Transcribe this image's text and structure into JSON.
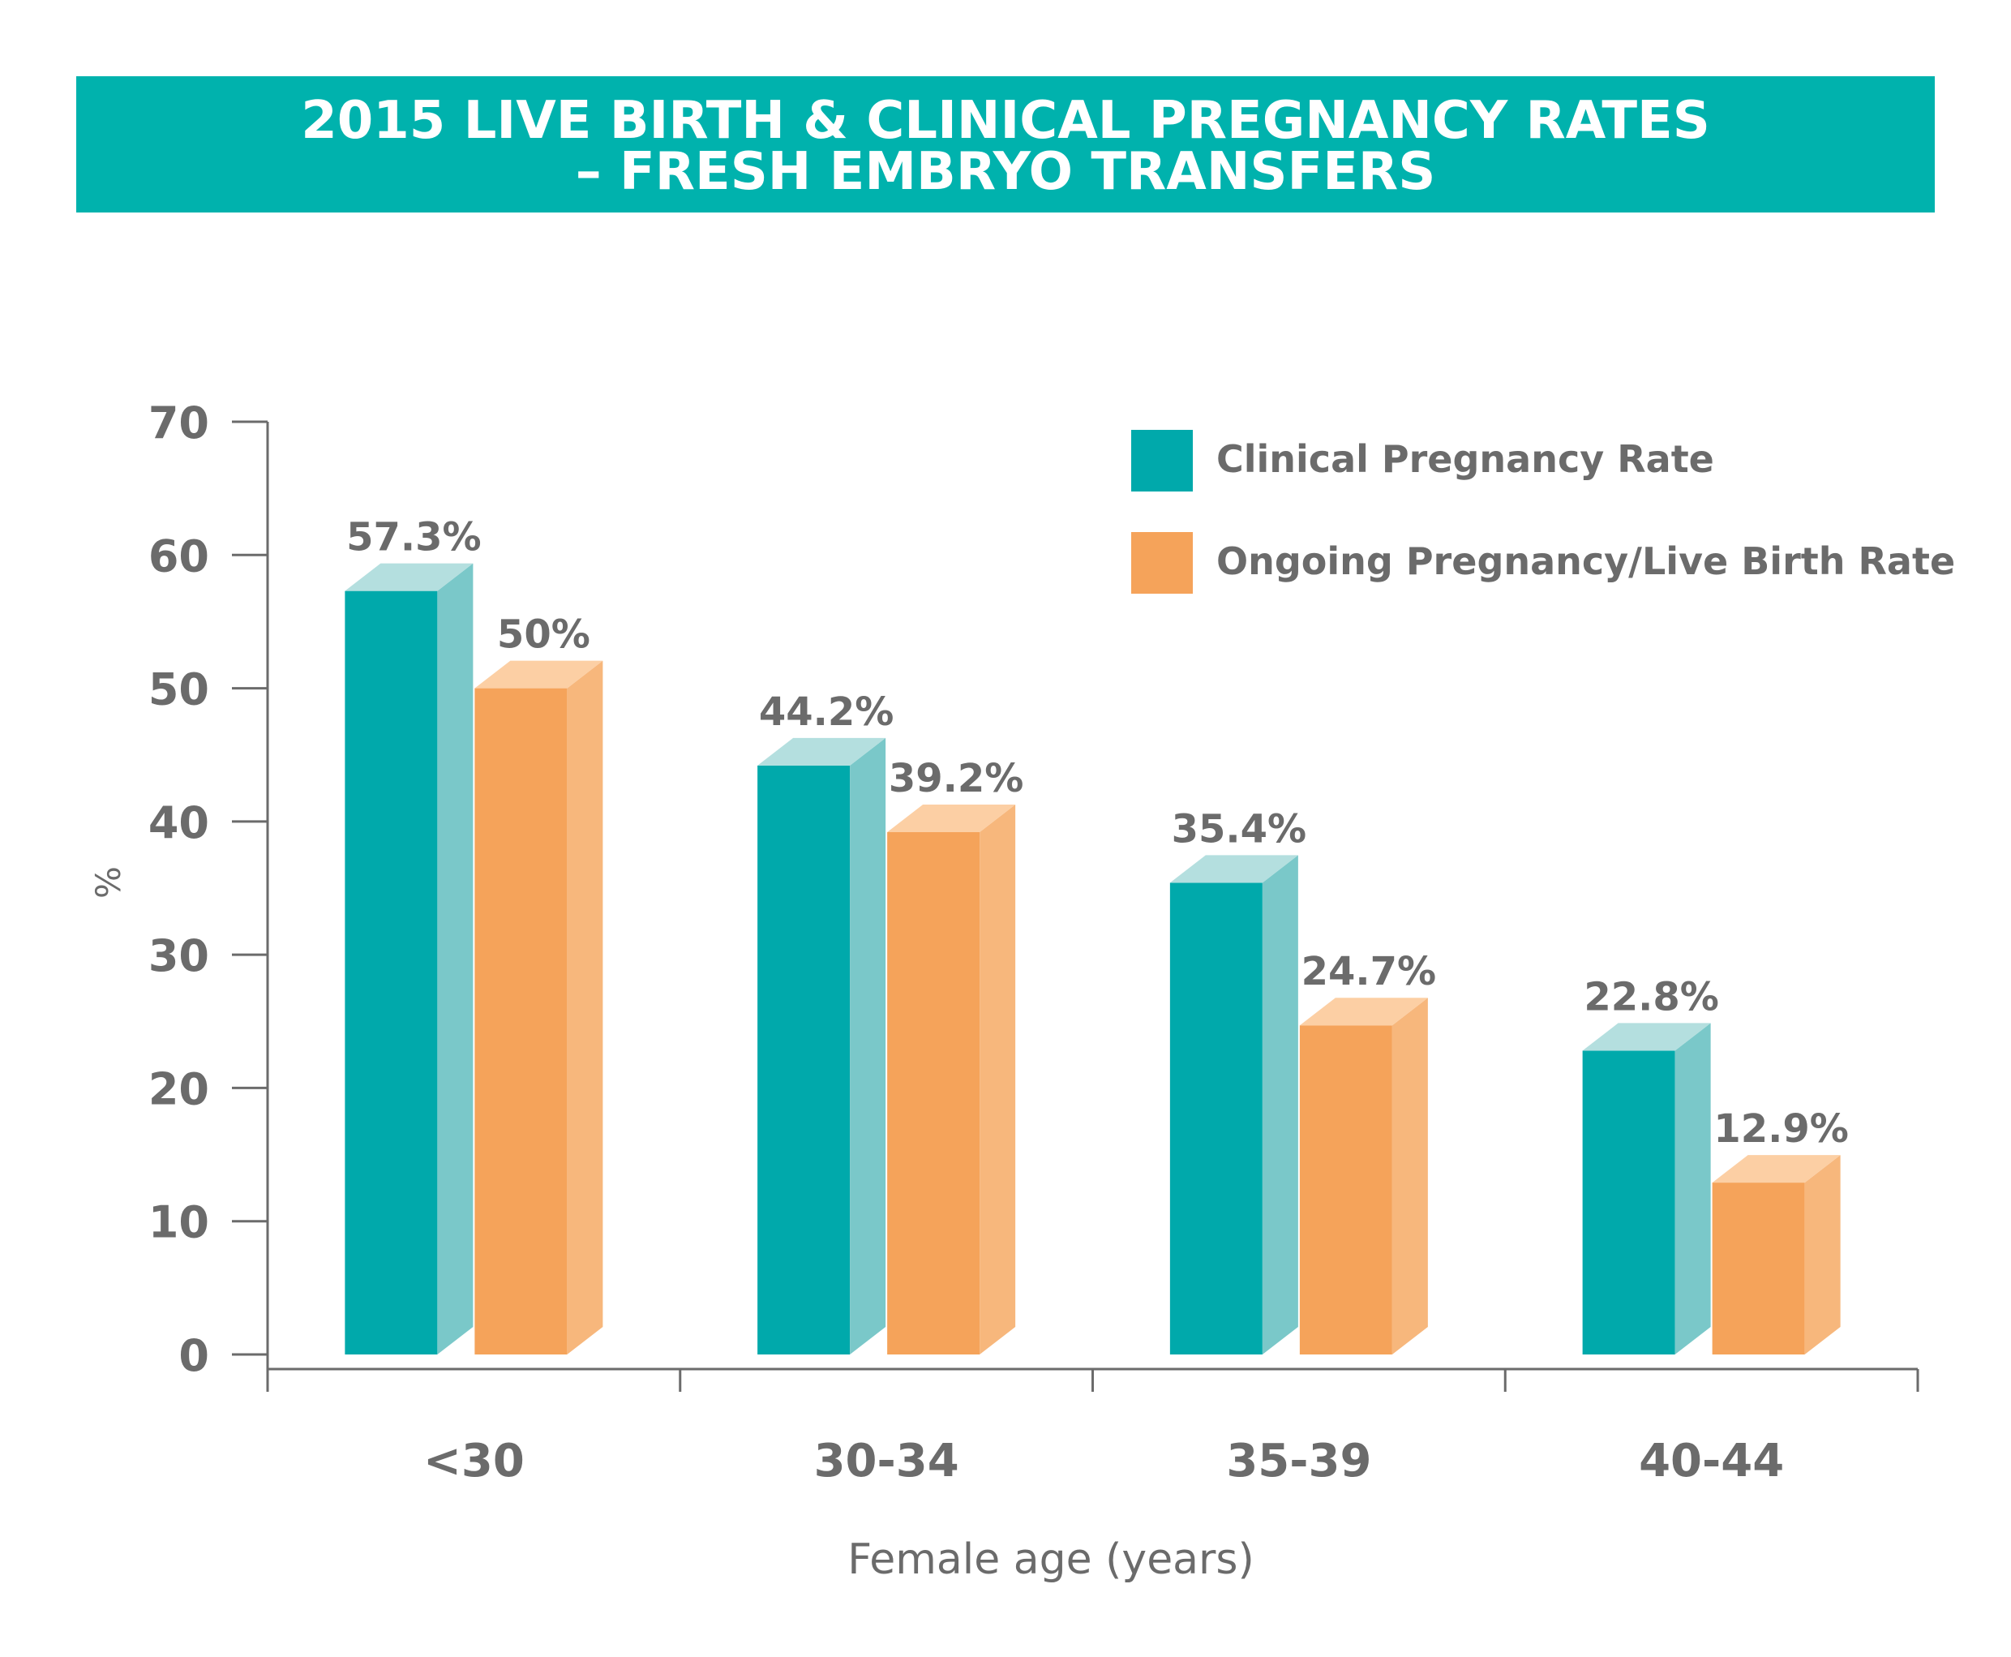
{
  "chart_data": {
    "type": "bar",
    "title": "2015 LIVE BIRTH & CLINICAL PREGNANCY RATES",
    "subtitle": "– FRESH EMBRYO TRANSFERS",
    "xlabel": "Female age (years)",
    "ylabel": "%",
    "ylim": [
      0,
      70
    ],
    "yticks": [
      0,
      10,
      20,
      30,
      40,
      50,
      60,
      70
    ],
    "categories": [
      "<30",
      "30-34",
      "35-39",
      "40-44"
    ],
    "series": [
      {
        "name": "Clinical Pregnancy Rate",
        "values": [
          57.3,
          44.2,
          35.4,
          22.8
        ],
        "labels": [
          "57.3%",
          "44.2%",
          "35.4%",
          "22.8%"
        ],
        "color": "#00a9ab",
        "side_color": "#7ac8c9",
        "top_color": "#b4dfdf"
      },
      {
        "name": "Ongoing Pregnancy/Live Birth Rate",
        "values": [
          50,
          39.2,
          24.7,
          12.9
        ],
        "labels": [
          "50%",
          "39.2%",
          "24.7%",
          "12.9%"
        ],
        "color": "#f5a35a",
        "side_color": "#f7b77c",
        "top_color": "#fccfa4"
      }
    ],
    "legend_position": "top-right",
    "grid": false,
    "banner_color": "#00b2ad",
    "text_color": "#6b6b6b",
    "axis_color": "#6b6b6b"
  }
}
